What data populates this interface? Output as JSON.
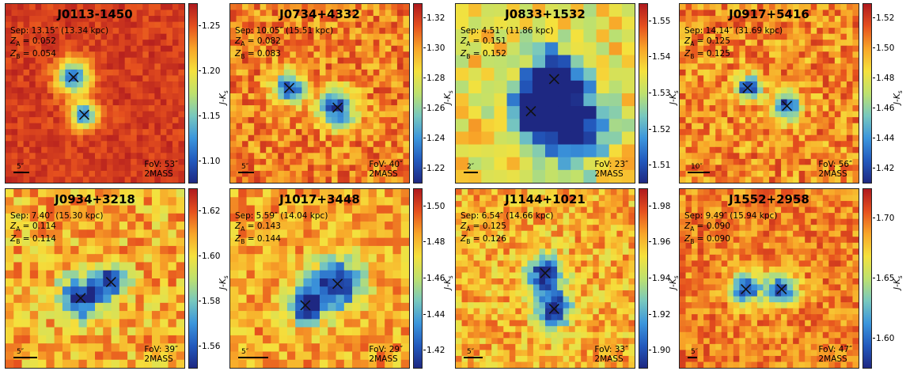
{
  "colorbar_label": "J-K",
  "colorbar_label_sub": "s",
  "source_label": "2MASS",
  "panels": [
    {
      "name": "J0113-1450",
      "sep": "Sep: 13.15″ (13.34 kpc)",
      "za": "0.052",
      "zb": "0.054",
      "fov": "FoV: 53″",
      "scale": "5″",
      "ticks": [
        "1.25",
        "1.20",
        "1.15",
        "1.10"
      ],
      "base": 0.92,
      "noise": 0.12,
      "blobs": [
        [
          0.38,
          0.41,
          0.11
        ],
        [
          0.44,
          0.62,
          0.09
        ]
      ]
    },
    {
      "name": "J0734+4332",
      "sep": "Sep: 10.05″ (15.51 kpc)",
      "za": "0.082",
      "zb": "0.083",
      "fov": "FoV: 40″",
      "scale": "5″",
      "ticks": [
        "1.32",
        "1.30",
        "1.28",
        "1.26",
        "1.24",
        "1.22"
      ],
      "base": 0.8,
      "noise": 0.28,
      "blobs": [
        [
          0.33,
          0.47,
          0.1
        ],
        [
          0.6,
          0.58,
          0.12
        ]
      ]
    },
    {
      "name": "J0833+1532",
      "sep": "Sep: 4.51″ (11.86 kpc)",
      "za": "0.151",
      "zb": "0.152",
      "fov": "FoV: 23″",
      "scale": "2″",
      "ticks": [
        "1.55",
        "1.54",
        "1.53",
        "1.52",
        "1.51"
      ],
      "base": 0.62,
      "noise": 0.3,
      "blobs": [
        [
          0.55,
          0.42,
          0.2
        ],
        [
          0.42,
          0.6,
          0.14
        ],
        [
          0.65,
          0.7,
          0.22
        ]
      ]
    },
    {
      "name": "J0917+5416",
      "sep": "Sep: 14.14″ (31.69 kpc)",
      "za": "0.125",
      "zb": "0.125",
      "fov": "FoV: 56″",
      "scale": "10″",
      "ticks": [
        "1.52",
        "1.50",
        "1.48",
        "1.46",
        "1.44",
        "1.42"
      ],
      "base": 0.78,
      "noise": 0.3,
      "blobs": [
        [
          0.38,
          0.47,
          0.08
        ],
        [
          0.6,
          0.57,
          0.09
        ]
      ]
    },
    {
      "name": "J0934+3218",
      "sep": "Sep: 7.40″ (15.30 kpc)",
      "za": "0.114",
      "zb": "0.114",
      "fov": "FoV: 39″",
      "scale": "5″",
      "ticks": [
        "1.62",
        "1.60",
        "1.58",
        "1.56"
      ],
      "base": 0.72,
      "noise": 0.32,
      "blobs": [
        [
          0.42,
          0.61,
          0.14
        ],
        [
          0.59,
          0.52,
          0.1
        ]
      ]
    },
    {
      "name": "J1017+3448",
      "sep": "Sep: 5.59″ (14.04 kpc)",
      "za": "0.143",
      "zb": "0.144",
      "fov": "FoV: 29″",
      "scale": "5″",
      "ticks": [
        "1.50",
        "1.48",
        "1.46",
        "1.44",
        "1.42"
      ],
      "base": 0.74,
      "noise": 0.28,
      "blobs": [
        [
          0.6,
          0.53,
          0.17
        ],
        [
          0.42,
          0.65,
          0.12
        ]
      ]
    },
    {
      "name": "J1144+1021",
      "sep": "Sep: 6.54″ (14.66 kpc)",
      "za": "0.125",
      "zb": "0.126",
      "fov": "FoV: 33″",
      "scale": "5″",
      "ticks": [
        "1.98",
        "1.96",
        "1.94",
        "1.92",
        "1.90"
      ],
      "base": 0.72,
      "noise": 0.3,
      "blobs": [
        [
          0.5,
          0.47,
          0.12
        ],
        [
          0.55,
          0.67,
          0.12
        ]
      ]
    },
    {
      "name": "J1552+2958",
      "sep": "Sep: 9.49″ (15.94 kpc)",
      "za": "0.090",
      "zb": "0.090",
      "fov": "FoV: 47″",
      "scale": "5″",
      "ticks": [
        "1.70",
        "1.65",
        "1.60"
      ],
      "base": 0.8,
      "noise": 0.25,
      "blobs": [
        [
          0.37,
          0.56,
          0.1
        ],
        [
          0.57,
          0.56,
          0.1
        ]
      ]
    }
  ]
}
